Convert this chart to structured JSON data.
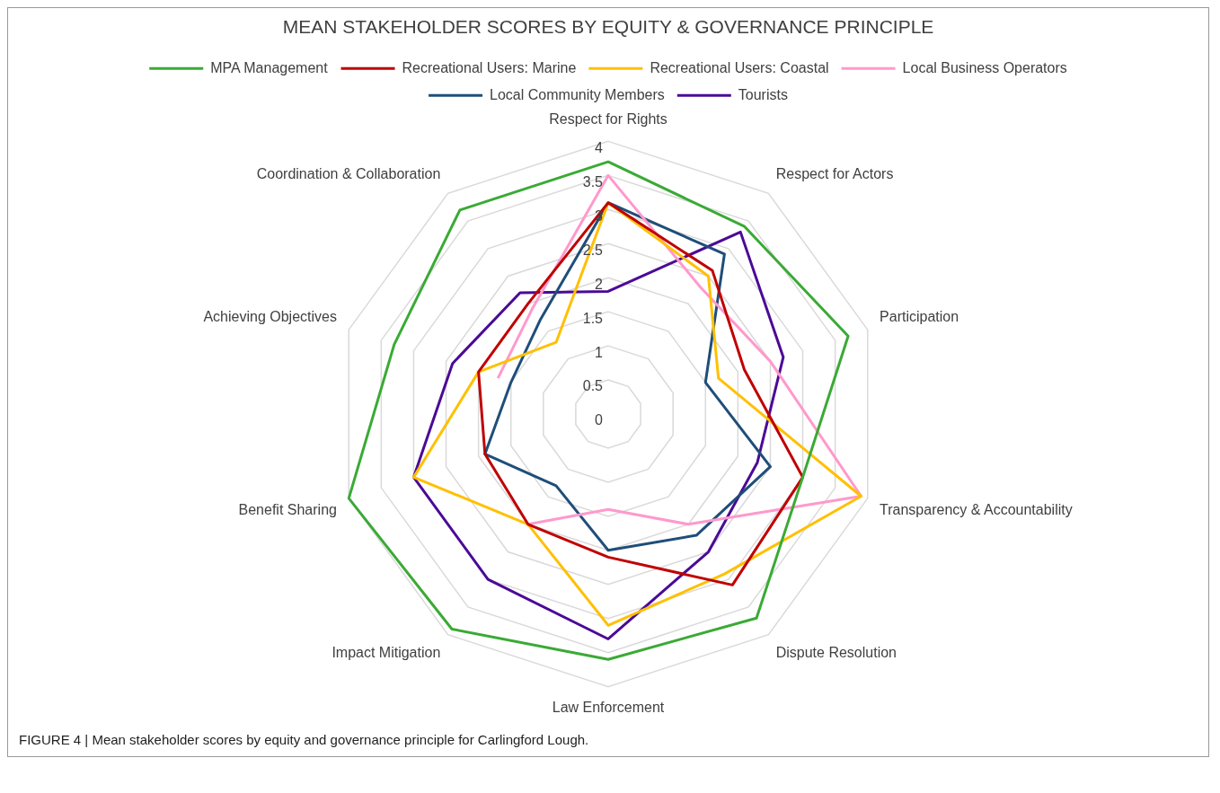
{
  "chart_data": {
    "type": "radar",
    "title": "MEAN STAKEHOLDER SCORES BY EQUITY & GOVERNANCE PRINCIPLE",
    "categories": [
      "Respect for Rights",
      "Respect for Actors",
      "Participation",
      "Transparency & Accountability",
      "Dispute Resolution",
      "Law Enforcement",
      "Impact Mitigation",
      "Benefit Sharing",
      "Achieving Objectives",
      "Coordination & Collaboration"
    ],
    "series": [
      {
        "name": "MPA Management",
        "color": "#3aaa35",
        "values": [
          3.7,
          3.4,
          3.7,
          3.0,
          3.7,
          3.6,
          3.9,
          4.0,
          3.3,
          3.7
        ]
      },
      {
        "name": "Recreational Users: Marine",
        "color": "#c00000",
        "values": [
          3.1,
          2.6,
          2.1,
          3.0,
          3.1,
          2.1,
          2.0,
          1.9,
          2.0,
          2.0
        ]
      },
      {
        "name": "Recreational Users: Coastal",
        "color": "#ffc000",
        "values": [
          3.1,
          2.5,
          1.7,
          3.9,
          2.9,
          3.1,
          2.0,
          3.0,
          2.0,
          1.3
        ]
      },
      {
        "name": "Local Business Operators",
        "color": "#ff99cc",
        "values": [
          3.5,
          2.3,
          2.5,
          3.9,
          2.0,
          1.4,
          2.0,
          null,
          1.7,
          1.9
        ]
      },
      {
        "name": "Local Community Members",
        "color": "#1f4e79",
        "values": [
          3.1,
          2.9,
          1.5,
          2.5,
          2.2,
          2.0,
          1.3,
          1.9,
          1.5,
          1.7
        ]
      },
      {
        "name": "Tourists",
        "color": "#4b0a96",
        "values": [
          1.8,
          3.3,
          2.7,
          2.3,
          2.5,
          3.3,
          3.0,
          3.0,
          2.4,
          2.2
        ]
      }
    ],
    "ylim": [
      0,
      4
    ],
    "yticks": [
      0,
      0.5,
      1,
      1.5,
      2,
      2.5,
      3,
      3.5,
      4
    ],
    "grid": true,
    "legend": "top",
    "marker": "none",
    "line_style": "solid",
    "annotations": [
      "FIGURE 4 | Mean stakeholder scores by equity and governance principle for Carlingford Lough."
    ]
  }
}
